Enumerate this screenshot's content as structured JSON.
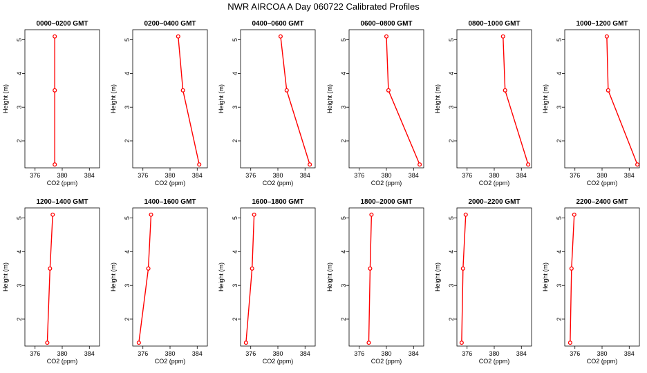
{
  "title": "NWR AIRCOA A  Day 060722  Calibrated Profiles",
  "chart_data": [
    {
      "type": "line",
      "title": "0000–0200 GMT",
      "xlabel": "CO2 (ppm)",
      "ylabel": "Height (m)",
      "xlim": [
        374.5,
        385.5
      ],
      "ylim": [
        1.2,
        5.3
      ],
      "x_ticks": [
        376,
        380,
        384
      ],
      "y_ticks": [
        2,
        3,
        4,
        5
      ],
      "heights": [
        5.1,
        3.5,
        1.3
      ],
      "values": [
        378.9,
        378.9,
        378.9
      ],
      "color": "#ff0000"
    },
    {
      "type": "line",
      "title": "0200–0400 GMT",
      "xlabel": "CO2 (ppm)",
      "ylabel": "Height (m)",
      "xlim": [
        374.5,
        385.5
      ],
      "ylim": [
        1.2,
        5.3
      ],
      "x_ticks": [
        376,
        380,
        384
      ],
      "y_ticks": [
        2,
        3,
        4,
        5
      ],
      "heights": [
        5.1,
        3.5,
        1.3
      ],
      "values": [
        381.2,
        381.9,
        384.3
      ],
      "color": "#ff0000"
    },
    {
      "type": "line",
      "title": "0400–0600 GMT",
      "xlabel": "CO2 (ppm)",
      "ylabel": "Height (m)",
      "xlim": [
        374.5,
        385.5
      ],
      "ylim": [
        1.2,
        5.3
      ],
      "x_ticks": [
        376,
        380,
        384
      ],
      "y_ticks": [
        2,
        3,
        4,
        5
      ],
      "heights": [
        5.1,
        3.5,
        1.3
      ],
      "values": [
        380.4,
        381.3,
        384.7
      ],
      "color": "#ff0000"
    },
    {
      "type": "line",
      "title": "0600–0800 GMT",
      "xlabel": "CO2 (ppm)",
      "ylabel": "Height (m)",
      "xlim": [
        374.5,
        385.5
      ],
      "ylim": [
        1.2,
        5.3
      ],
      "x_ticks": [
        376,
        380,
        384
      ],
      "y_ticks": [
        2,
        3,
        4,
        5
      ],
      "heights": [
        5.1,
        3.5,
        1.3
      ],
      "values": [
        380.0,
        380.3,
        384.9
      ],
      "color": "#ff0000"
    },
    {
      "type": "line",
      "title": "0800–1000 GMT",
      "xlabel": "CO2 (ppm)",
      "ylabel": "Height (m)",
      "xlim": [
        374.5,
        385.5
      ],
      "ylim": [
        1.2,
        5.3
      ],
      "x_ticks": [
        376,
        380,
        384
      ],
      "y_ticks": [
        2,
        3,
        4,
        5
      ],
      "heights": [
        5.1,
        3.5,
        1.3
      ],
      "values": [
        381.3,
        381.6,
        385.0
      ],
      "color": "#ff0000"
    },
    {
      "type": "line",
      "title": "1000–1200 GMT",
      "xlabel": "CO2 (ppm)",
      "ylabel": "Height (m)",
      "xlim": [
        374.5,
        385.5
      ],
      "ylim": [
        1.2,
        5.3
      ],
      "x_ticks": [
        376,
        380,
        384
      ],
      "y_ticks": [
        2,
        3,
        4,
        5
      ],
      "heights": [
        5.1,
        3.5,
        1.3
      ],
      "values": [
        380.7,
        380.9,
        385.2
      ],
      "color": "#ff0000"
    },
    {
      "type": "line",
      "title": "1200–1400 GMT",
      "xlabel": "CO2 (ppm)",
      "ylabel": "Height (m)",
      "xlim": [
        374.5,
        385.5
      ],
      "ylim": [
        1.2,
        5.3
      ],
      "x_ticks": [
        376,
        380,
        384
      ],
      "y_ticks": [
        2,
        3,
        4,
        5
      ],
      "heights": [
        5.1,
        3.5,
        1.3
      ],
      "values": [
        378.6,
        378.2,
        377.8
      ],
      "color": "#ff0000"
    },
    {
      "type": "line",
      "title": "1400–1600 GMT",
      "xlabel": "CO2 (ppm)",
      "ylabel": "Height (m)",
      "xlim": [
        374.5,
        385.5
      ],
      "ylim": [
        1.2,
        5.3
      ],
      "x_ticks": [
        376,
        380,
        384
      ],
      "y_ticks": [
        2,
        3,
        4,
        5
      ],
      "heights": [
        5.1,
        3.5,
        1.3
      ],
      "values": [
        377.2,
        376.8,
        375.4
      ],
      "color": "#ff0000"
    },
    {
      "type": "line",
      "title": "1600–1800 GMT",
      "xlabel": "CO2 (ppm)",
      "ylabel": "Height (m)",
      "xlim": [
        374.5,
        385.5
      ],
      "ylim": [
        1.2,
        5.3
      ],
      "x_ticks": [
        376,
        380,
        384
      ],
      "y_ticks": [
        2,
        3,
        4,
        5
      ],
      "heights": [
        5.1,
        3.5,
        1.3
      ],
      "values": [
        376.5,
        376.2,
        375.3
      ],
      "color": "#ff0000"
    },
    {
      "type": "line",
      "title": "1800–2000 GMT",
      "xlabel": "CO2 (ppm)",
      "ylabel": "Height (m)",
      "xlim": [
        374.5,
        385.5
      ],
      "ylim": [
        1.2,
        5.3
      ],
      "x_ticks": [
        376,
        380,
        384
      ],
      "y_ticks": [
        2,
        3,
        4,
        5
      ],
      "heights": [
        5.1,
        3.5,
        1.3
      ],
      "values": [
        377.8,
        377.6,
        377.4
      ],
      "color": "#ff0000"
    },
    {
      "type": "line",
      "title": "2000–2200 GMT",
      "xlabel": "CO2 (ppm)",
      "ylabel": "Height (m)",
      "xlim": [
        374.5,
        385.5
      ],
      "ylim": [
        1.2,
        5.3
      ],
      "x_ticks": [
        376,
        380,
        384
      ],
      "y_ticks": [
        2,
        3,
        4,
        5
      ],
      "heights": [
        5.1,
        3.5,
        1.3
      ],
      "values": [
        375.8,
        375.4,
        375.2
      ],
      "color": "#ff0000"
    },
    {
      "type": "line",
      "title": "2200–2400 GMT",
      "xlabel": "CO2 (ppm)",
      "ylabel": "Height (m)",
      "xlim": [
        374.5,
        385.5
      ],
      "ylim": [
        1.2,
        5.3
      ],
      "x_ticks": [
        376,
        380,
        384
      ],
      "y_ticks": [
        2,
        3,
        4,
        5
      ],
      "heights": [
        5.1,
        3.5,
        1.3
      ],
      "values": [
        375.9,
        375.5,
        375.3
      ],
      "color": "#ff0000"
    }
  ]
}
